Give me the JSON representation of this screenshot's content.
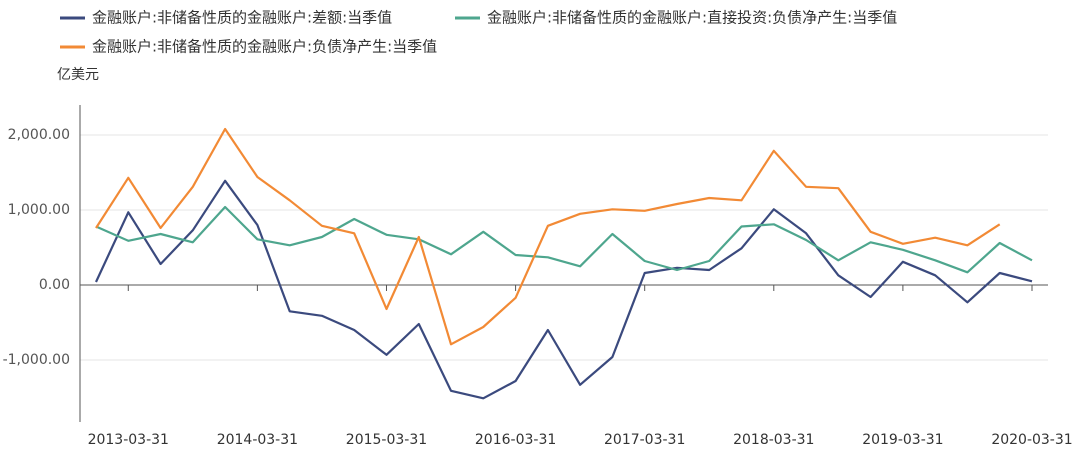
{
  "chart_data": {
    "type": "line",
    "y_label": "亿美元",
    "categories": [
      null,
      "2013-03-31",
      null,
      null,
      null,
      "2014-03-31",
      null,
      null,
      null,
      "2015-03-31",
      null,
      null,
      null,
      "2016-03-31",
      null,
      null,
      null,
      "2017-03-31",
      null,
      null,
      null,
      "2018-03-31",
      null,
      null,
      null,
      "2019-03-31",
      null,
      null,
      null,
      "2020-03-31"
    ],
    "ylim": [
      -1800,
      2400
    ],
    "yticks": [
      {
        "value": -1000,
        "label": "-1,000.00"
      },
      {
        "value": 0,
        "label": "0.00"
      },
      {
        "value": 1000,
        "label": "1,000.00"
      },
      {
        "value": 2000,
        "label": "2,000.00"
      }
    ],
    "grid": true,
    "series": [
      {
        "name": "金融账户:非储备性质的金融账户:差额:当季值",
        "color": "#3b4a7e",
        "values": [
          40,
          970,
          280,
          730,
          1390,
          800,
          -350,
          -410,
          -600,
          -930,
          -520,
          -1410,
          -1510,
          -1280,
          -600,
          -1330,
          -960,
          160,
          230,
          200,
          490,
          1010,
          690,
          130,
          -160,
          310,
          130,
          -230,
          160,
          50
        ]
      },
      {
        "name": "金融账户:非储备性质的金融账户:直接投资:负债净产生:当季值",
        "color": "#4ea68e",
        "values": [
          780,
          590,
          680,
          570,
          1040,
          610,
          530,
          640,
          880,
          670,
          610,
          410,
          710,
          400,
          370,
          250,
          680,
          320,
          200,
          320,
          780,
          810,
          600,
          330,
          570,
          470,
          330,
          170,
          560,
          330
        ]
      },
      {
        "name": "金融账户:非储备性质的金融账户:负债净产生:当季值",
        "color": "#f28a35",
        "values": [
          760,
          1430,
          760,
          1310,
          2080,
          1440,
          1130,
          790,
          690,
          -320,
          640,
          -790,
          -560,
          -170,
          790,
          950,
          1010,
          990,
          1080,
          1160,
          1130,
          1790,
          1310,
          1290,
          710,
          550,
          630,
          530,
          810,
          null
        ]
      }
    ]
  }
}
